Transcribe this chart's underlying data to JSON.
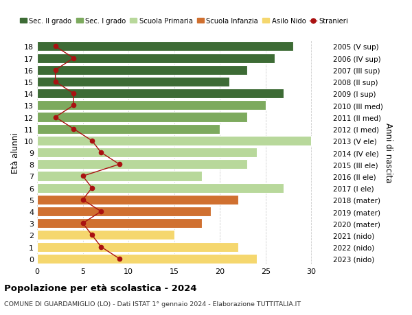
{
  "ages": [
    18,
    17,
    16,
    15,
    14,
    13,
    12,
    11,
    10,
    9,
    8,
    7,
    6,
    5,
    4,
    3,
    2,
    1,
    0
  ],
  "bar_values": [
    28,
    26,
    23,
    21,
    27,
    25,
    23,
    20,
    30,
    24,
    23,
    18,
    27,
    22,
    19,
    18,
    15,
    22,
    24
  ],
  "bar_colors": [
    "#3d6b35",
    "#3d6b35",
    "#3d6b35",
    "#3d6b35",
    "#3d6b35",
    "#7daa5e",
    "#7daa5e",
    "#7daa5e",
    "#b8d89b",
    "#b8d89b",
    "#b8d89b",
    "#b8d89b",
    "#b8d89b",
    "#d07030",
    "#d07030",
    "#d07030",
    "#f5d76e",
    "#f5d76e",
    "#f5d76e"
  ],
  "stranieri_values": [
    2,
    4,
    2,
    2,
    4,
    4,
    2,
    4,
    6,
    7,
    9,
    5,
    6,
    5,
    7,
    5,
    6,
    7,
    9
  ],
  "right_labels": [
    "2005 (V sup)",
    "2006 (IV sup)",
    "2007 (III sup)",
    "2008 (II sup)",
    "2009 (I sup)",
    "2010 (III med)",
    "2011 (II med)",
    "2012 (I med)",
    "2013 (V ele)",
    "2014 (IV ele)",
    "2015 (III ele)",
    "2016 (II ele)",
    "2017 (I ele)",
    "2018 (mater)",
    "2019 (mater)",
    "2020 (mater)",
    "2021 (nido)",
    "2022 (nido)",
    "2023 (nido)"
  ],
  "ylabel_left": "Età alunni",
  "ylabel_right": "Anni di nascita",
  "title": "Popolazione per età scolastica - 2024",
  "subtitle": "COMUNE DI GUARDAMIGLIO (LO) - Dati ISTAT 1° gennaio 2024 - Elaborazione TUTTITALIA.IT",
  "xlim": [
    0,
    32
  ],
  "legend_labels": [
    "Sec. II grado",
    "Sec. I grado",
    "Scuola Primaria",
    "Scuola Infanzia",
    "Asilo Nido",
    "Stranieri"
  ],
  "legend_colors": [
    "#3d6b35",
    "#7daa5e",
    "#b8d89b",
    "#d07030",
    "#f5d76e",
    "#aa1111"
  ],
  "bg_color": "#ffffff",
  "grid_color": "#cccccc",
  "stranieri_color": "#aa1111",
  "bar_height": 0.82,
  "tick_fontsize": 8,
  "label_fontsize": 8.5
}
